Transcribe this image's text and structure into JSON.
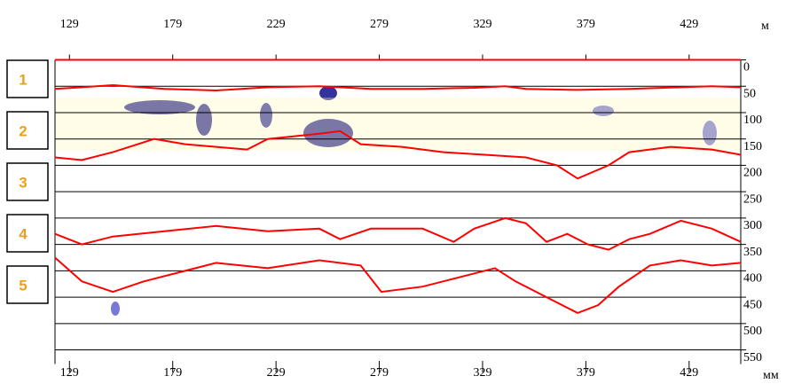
{
  "chart_data": {
    "type": "line",
    "xlabel": "м",
    "ylabel": "мм",
    "layer_labels": [
      "1",
      "2",
      "3",
      "4",
      "5"
    ],
    "xlim": [
      122,
      454
    ],
    "xticks": [
      129,
      179,
      229,
      279,
      329,
      379,
      429
    ],
    "ylim": [
      0,
      560
    ],
    "yticks": [
      0,
      50,
      100,
      150,
      200,
      250,
      300,
      350,
      400,
      450,
      500,
      550
    ],
    "grid": true,
    "series": [
      {
        "color": "#ff0000",
        "x": [
          122,
          135,
          150,
          175,
          200,
          225,
          250,
          275,
          300,
          325,
          340,
          350,
          375,
          400,
          425,
          440,
          454
        ],
        "values": [
          55,
          52,
          48,
          55,
          58,
          52,
          50,
          55,
          55,
          53,
          50,
          55,
          57,
          55,
          52,
          50,
          52
        ]
      },
      {
        "color": "#ff0000",
        "x": [
          122,
          135,
          150,
          170,
          185,
          200,
          215,
          225,
          250,
          260,
          270,
          290,
          310,
          330,
          350,
          365,
          375,
          390,
          400,
          420,
          440,
          454
        ],
        "values": [
          185,
          190,
          175,
          150,
          160,
          165,
          170,
          150,
          140,
          135,
          160,
          165,
          175,
          180,
          185,
          200,
          225,
          200,
          175,
          165,
          170,
          180
        ]
      },
      {
        "color": "#ff0000",
        "x": [
          122,
          135,
          150,
          175,
          200,
          225,
          250,
          260,
          275,
          300,
          315,
          325,
          340,
          350,
          360,
          370,
          380,
          390,
          400,
          410,
          425,
          440,
          454
        ],
        "values": [
          330,
          350,
          335,
          325,
          315,
          325,
          320,
          340,
          320,
          320,
          345,
          320,
          300,
          310,
          345,
          330,
          350,
          360,
          340,
          330,
          305,
          320,
          345
        ]
      },
      {
        "color": "#ff0000",
        "x": [
          122,
          135,
          150,
          165,
          185,
          200,
          225,
          250,
          270,
          280,
          300,
          320,
          335,
          345,
          360,
          375,
          385,
          395,
          410,
          425,
          440,
          454
        ],
        "values": [
          375,
          420,
          440,
          420,
          400,
          385,
          395,
          380,
          390,
          440,
          430,
          410,
          395,
          420,
          450,
          480,
          465,
          430,
          390,
          380,
          390,
          385
        ]
      }
    ]
  }
}
